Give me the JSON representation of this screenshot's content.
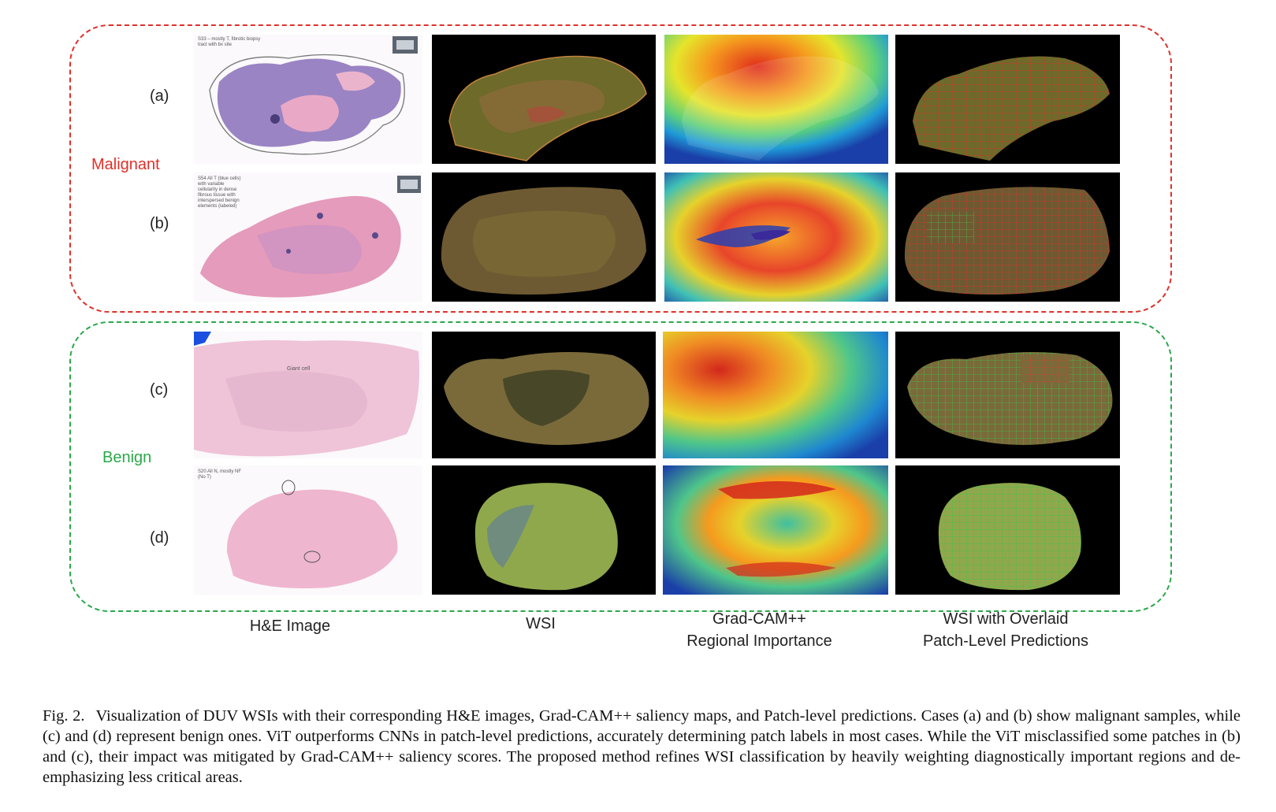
{
  "groups": {
    "malignant": {
      "label": "Malignant",
      "color": "#e0302a"
    },
    "benign": {
      "label": "Benign",
      "color": "#2aa84a"
    }
  },
  "cases": [
    {
      "id": "a",
      "label": "(a)",
      "note": "S33 – mostly T, fibrotic biopsy tract with bx site"
    },
    {
      "id": "b",
      "label": "(b)",
      "note": "S54 All T (blue cells) with variable cellularity in dense fibrous tissue with interspersed benign elements (labeled)"
    },
    {
      "id": "c",
      "label": "(c)",
      "note": "Giant cell"
    },
    {
      "id": "d",
      "label": "(d)",
      "note": "S20 All N, mostly NF (No T)"
    }
  ],
  "columns": {
    "he": "H&E Image",
    "wsi": "WSI",
    "gradcam_line1": "Grad-CAM++",
    "gradcam_line2": "Regional Importance",
    "overlay_line1": "WSI with Overlaid",
    "overlay_line2": "Patch-Level Predictions"
  },
  "panel_icons": [
    "he-tissue-image",
    "wsi-fluorescence-image",
    "gradcam-heatmap-image",
    "patch-overlay-image"
  ],
  "caption": {
    "fig_label": "Fig. 2.",
    "text": "Visualization of DUV WSIs with their corresponding H&E images, Grad-CAM++ saliency maps, and Patch-level predictions. Cases (a) and (b) show malignant samples, while (c) and (d) represent benign ones. ViT outperforms CNNs in patch-level predictions, accurately determining patch labels in most cases. While the ViT misclassified some patches in (b) and (c), their impact was mitigated by Grad-CAM++ saliency scores. The proposed method refines WSI classification by heavily weighting diagnostically important regions and de-emphasizing less critical areas."
  }
}
